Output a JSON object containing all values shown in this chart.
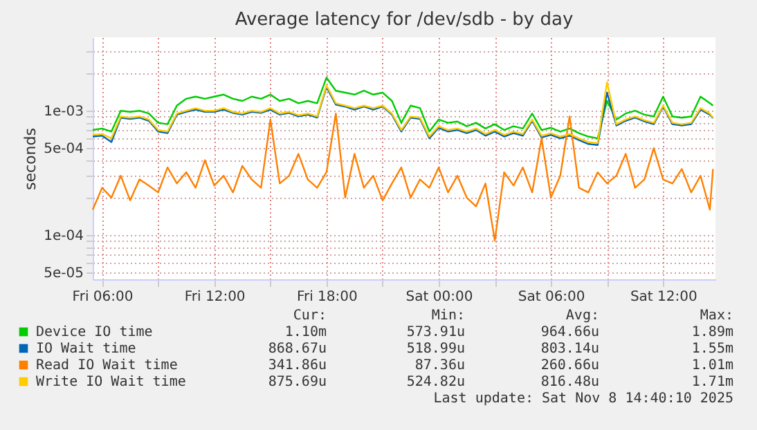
{
  "chart_data": {
    "type": "line",
    "title": "Average latency for /dev/sdb - by day",
    "ylabel": "seconds",
    "log": "y",
    "grid": true,
    "legend": "bottom",
    "marker": "none",
    "line_style": "solid",
    "x": [
      "2025-11-07T05:30",
      "2025-11-07T06:00",
      "2025-11-07T06:30",
      "2025-11-07T07:00",
      "2025-11-07T07:30",
      "2025-11-07T08:00",
      "2025-11-07T08:30",
      "2025-11-07T09:00",
      "2025-11-07T09:30",
      "2025-11-07T10:00",
      "2025-11-07T10:30",
      "2025-11-07T11:00",
      "2025-11-07T11:30",
      "2025-11-07T12:00",
      "2025-11-07T12:30",
      "2025-11-07T13:00",
      "2025-11-07T13:30",
      "2025-11-07T14:00",
      "2025-11-07T14:30",
      "2025-11-07T15:00",
      "2025-11-07T15:30",
      "2025-11-07T16:00",
      "2025-11-07T16:30",
      "2025-11-07T17:00",
      "2025-11-07T17:30",
      "2025-11-07T18:00",
      "2025-11-07T18:30",
      "2025-11-07T19:00",
      "2025-11-07T19:30",
      "2025-11-07T20:00",
      "2025-11-07T20:30",
      "2025-11-07T21:00",
      "2025-11-07T21:30",
      "2025-11-07T22:00",
      "2025-11-07T22:30",
      "2025-11-07T23:00",
      "2025-11-07T23:30",
      "2025-11-08T00:00",
      "2025-11-08T00:30",
      "2025-11-08T01:00",
      "2025-11-08T01:30",
      "2025-11-08T02:00",
      "2025-11-08T02:30",
      "2025-11-08T03:00",
      "2025-11-08T03:30",
      "2025-11-08T04:00",
      "2025-11-08T04:30",
      "2025-11-08T05:00",
      "2025-11-08T05:30",
      "2025-11-08T06:00",
      "2025-11-08T06:30",
      "2025-11-08T07:00",
      "2025-11-08T07:30",
      "2025-11-08T08:00",
      "2025-11-08T08:30",
      "2025-11-08T09:00",
      "2025-11-08T09:30",
      "2025-11-08T10:00",
      "2025-11-08T10:30",
      "2025-11-08T11:00",
      "2025-11-08T11:30",
      "2025-11-08T12:00",
      "2025-11-08T12:30",
      "2025-11-08T13:00",
      "2025-11-08T13:30",
      "2025-11-08T14:00",
      "2025-11-08T14:30",
      "2025-11-08T14:40"
    ],
    "series": [
      {
        "name": "Device IO time",
        "color": "#00cc00",
        "values": [
          0.0007,
          0.00072,
          0.00068,
          0.001,
          0.00098,
          0.001,
          0.00095,
          0.0008,
          0.00078,
          0.0011,
          0.00125,
          0.0013,
          0.00125,
          0.0013,
          0.00135,
          0.00125,
          0.0012,
          0.0013,
          0.00125,
          0.00135,
          0.0012,
          0.00125,
          0.00115,
          0.0012,
          0.00115,
          0.00185,
          0.00145,
          0.0014,
          0.00135,
          0.00145,
          0.00135,
          0.0014,
          0.0012,
          0.0008,
          0.0011,
          0.00105,
          0.00068,
          0.00085,
          0.0008,
          0.00082,
          0.00075,
          0.0008,
          0.00072,
          0.00078,
          0.0007,
          0.00075,
          0.00072,
          0.00095,
          0.0007,
          0.00073,
          0.00068,
          0.00072,
          0.00066,
          0.00062,
          0.0006,
          0.0012,
          0.00085,
          0.00095,
          0.001,
          0.00093,
          0.0009,
          0.0013,
          0.0009,
          0.00088,
          0.0009,
          0.0013,
          0.00115,
          0.0011
        ]
      },
      {
        "name": "IO Wait time",
        "color": "#0066b3",
        "values": [
          0.00062,
          0.00063,
          0.00056,
          0.00088,
          0.00086,
          0.00088,
          0.00083,
          0.00068,
          0.00066,
          0.00093,
          0.00098,
          0.00102,
          0.00098,
          0.00098,
          0.00102,
          0.00096,
          0.00093,
          0.00098,
          0.00096,
          0.00102,
          0.00093,
          0.00096,
          0.0009,
          0.00093,
          0.00088,
          0.00155,
          0.00112,
          0.00108,
          0.00102,
          0.00108,
          0.00102,
          0.00108,
          0.00093,
          0.00068,
          0.00088,
          0.00086,
          0.0006,
          0.00073,
          0.00068,
          0.0007,
          0.00066,
          0.0007,
          0.00063,
          0.00068,
          0.00062,
          0.00066,
          0.00063,
          0.00083,
          0.00061,
          0.00064,
          0.0006,
          0.00063,
          0.00058,
          0.00054,
          0.00053,
          0.0014,
          0.00076,
          0.00083,
          0.00088,
          0.00082,
          0.00078,
          0.00108,
          0.00078,
          0.00076,
          0.00078,
          0.00102,
          0.00093,
          0.00087
        ]
      },
      {
        "name": "Read IO Wait time",
        "color": "#ff8000",
        "values": [
          0.00016,
          0.00024,
          0.0002,
          0.0003,
          0.00019,
          0.00028,
          0.00025,
          0.00022,
          0.00035,
          0.00026,
          0.00032,
          0.00024,
          0.0004,
          0.00025,
          0.0003,
          0.00022,
          0.00036,
          0.00028,
          0.00024,
          0.00085,
          0.00026,
          0.0003,
          0.00045,
          0.00028,
          0.00024,
          0.00032,
          0.00095,
          0.0002,
          0.00045,
          0.00024,
          0.0003,
          0.00019,
          0.00026,
          0.00035,
          0.0002,
          0.00028,
          0.00024,
          0.00035,
          0.00022,
          0.0003,
          0.0002,
          0.00017,
          0.00026,
          9e-05,
          0.00032,
          0.00025,
          0.00035,
          0.00022,
          0.0006,
          0.0002,
          0.0003,
          0.0009,
          0.00024,
          0.00022,
          0.00032,
          0.00026,
          0.0003,
          0.00045,
          0.00024,
          0.00028,
          0.0005,
          0.00028,
          0.00026,
          0.00034,
          0.00022,
          0.0003,
          0.00016,
          0.00034
        ]
      },
      {
        "name": "Write IO Wait time",
        "color": "#ffcc00",
        "values": [
          0.00064,
          0.00065,
          0.0006,
          0.0009,
          0.00088,
          0.0009,
          0.00085,
          0.0007,
          0.00068,
          0.00095,
          0.001,
          0.00105,
          0.001,
          0.001,
          0.00105,
          0.00098,
          0.00095,
          0.001,
          0.00098,
          0.00105,
          0.00095,
          0.00098,
          0.00092,
          0.00095,
          0.0009,
          0.0016,
          0.00115,
          0.0011,
          0.00105,
          0.0011,
          0.00105,
          0.0011,
          0.00095,
          0.0007,
          0.0009,
          0.00088,
          0.00062,
          0.00075,
          0.0007,
          0.00072,
          0.00068,
          0.00072,
          0.00065,
          0.0007,
          0.00064,
          0.00068,
          0.00065,
          0.00085,
          0.00063,
          0.00066,
          0.00062,
          0.00065,
          0.0006,
          0.00056,
          0.00055,
          0.0017,
          0.00078,
          0.00085,
          0.0009,
          0.00084,
          0.0008,
          0.0011,
          0.0008,
          0.00078,
          0.0008,
          0.00105,
          0.00095,
          0.00088
        ]
      }
    ],
    "xlim": [
      "2025-11-07T05:30",
      "2025-11-08T14:48"
    ],
    "xticks": [
      {
        "value": "2025-11-07T06:00",
        "label": "Fri 06:00"
      },
      {
        "value": "2025-11-07T09:00",
        "label": null
      },
      {
        "value": "2025-11-07T12:00",
        "label": "Fri 12:00"
      },
      {
        "value": "2025-11-07T15:00",
        "label": null
      },
      {
        "value": "2025-11-07T18:00",
        "label": "Fri 18:00"
      },
      {
        "value": "2025-11-07T21:00",
        "label": null
      },
      {
        "value": "2025-11-08T00:00",
        "label": "Sat 00:00"
      },
      {
        "value": "2025-11-08T03:00",
        "label": null
      },
      {
        "value": "2025-11-08T06:00",
        "label": "Sat 06:00"
      },
      {
        "value": "2025-11-08T09:00",
        "label": null
      },
      {
        "value": "2025-11-08T12:00",
        "label": "Sat 12:00"
      }
    ],
    "ylim": [
      4.4e-05,
      0.0039
    ],
    "yticks": [
      {
        "value": 5e-05,
        "label": "5e-05"
      },
      {
        "value": 6e-05,
        "label": null
      },
      {
        "value": 7e-05,
        "label": null
      },
      {
        "value": 8e-05,
        "label": null
      },
      {
        "value": 9e-05,
        "label": null
      },
      {
        "value": 0.0001,
        "label": "1e-04"
      },
      {
        "value": 0.0002,
        "label": null
      },
      {
        "value": 0.0003,
        "label": null
      },
      {
        "value": 0.0004,
        "label": null
      },
      {
        "value": 0.0005,
        "label": "5e-04"
      },
      {
        "value": 0.0006,
        "label": null
      },
      {
        "value": 0.0007,
        "label": null
      },
      {
        "value": 0.0008,
        "label": null
      },
      {
        "value": 0.0009,
        "label": null
      },
      {
        "value": 0.001,
        "label": "1e-03"
      },
      {
        "value": 0.002,
        "label": null
      },
      {
        "value": 0.003,
        "label": null
      }
    ],
    "annotations": [
      "Cur:",
      "Min:",
      "Avg:",
      "Max:",
      "1.10m",
      "573.91u",
      "964.66u",
      "1.89m",
      "868.67u",
      "518.99u",
      "803.14u",
      "1.55m",
      "341.86u",
      "87.36u",
      "260.66u",
      "1.01m",
      "875.69u",
      "524.82u",
      "816.48u",
      "1.71m",
      "Last update: Sat Nov  8 14:40:10 2025"
    ]
  }
}
